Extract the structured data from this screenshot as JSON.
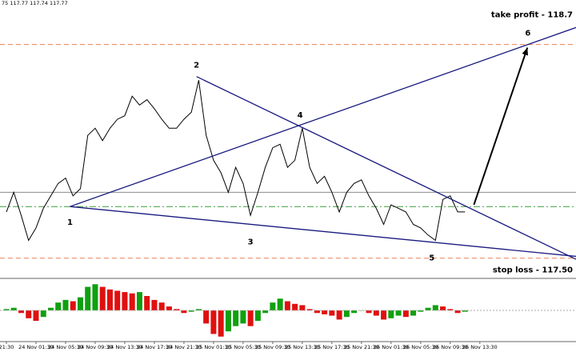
{
  "chart_data": {
    "type": "line",
    "header": "75 117.77 117.74 117.77",
    "categories": [
      "21:30",
      null,
      null,
      null,
      "24 Nov 01:30",
      null,
      null,
      null,
      "24 Nov 05:30",
      null,
      null,
      null,
      "24 Nov 09:30",
      null,
      null,
      null,
      "24 Nov 13:30",
      null,
      null,
      null,
      "24 Nov 17:30",
      null,
      null,
      null,
      "24 Nov 21:30",
      null,
      null,
      null,
      "25 Nov 01:30",
      null,
      null,
      null,
      "25 Nov 05:30",
      null,
      null,
      null,
      "25 Nov 09:30",
      null,
      null,
      null,
      "25 Nov 13:30",
      null,
      null,
      null,
      "25 Nov 17:30",
      null,
      null,
      null,
      "25 Nov 21:30",
      null,
      null,
      null,
      "26 Nov 01:30",
      null,
      null,
      null,
      "26 Nov 05:30",
      null,
      null,
      null,
      "26 Nov 09:30",
      null,
      null,
      null,
      "26 Nov 13:30"
    ],
    "series": [
      {
        "color": "#000000",
        "values": [
          117.76,
          117.87,
          117.74,
          117.6,
          117.67,
          117.78,
          117.85,
          117.92,
          117.95,
          117.85,
          117.89,
          118.19,
          118.23,
          118.16,
          118.23,
          118.28,
          118.3,
          118.41,
          118.36,
          118.39,
          118.34,
          118.28,
          118.23,
          118.23,
          118.28,
          118.32,
          118.5,
          118.19,
          118.05,
          117.98,
          117.87,
          118.01,
          117.92,
          117.74,
          117.87,
          118.01,
          118.12,
          118.14,
          118.01,
          118.05,
          118.23,
          118.01,
          117.92,
          117.96,
          117.87,
          117.76,
          117.87,
          117.92,
          117.94,
          117.85,
          117.78,
          117.69,
          117.8,
          117.78,
          117.76,
          117.69,
          117.67,
          117.63,
          117.6,
          117.83,
          117.85,
          117.76,
          117.76,
          null,
          null
        ]
      }
    ],
    "xlim": [
      0,
      77
    ],
    "ylim": [
      117.4,
      118.95
    ],
    "levels": [
      {
        "label": "take profit - 118.7",
        "value": 118.7,
        "color": "#f08050",
        "style": "dashed"
      },
      {
        "label": "stop loss - 117.50",
        "value": 117.5,
        "color": "#f08050",
        "style": "dashed"
      },
      {
        "value": 117.87,
        "color": "#8c8c8c",
        "style": "solid"
      },
      {
        "value": 117.79,
        "color": "#3a9a3a",
        "style": "dashdot"
      }
    ],
    "points": [
      {
        "label": "1",
        "x": 8.6,
        "y": 117.79
      },
      {
        "label": "2",
        "x": 25.7,
        "y": 118.52
      },
      {
        "label": "3",
        "x": 33,
        "y": 117.68
      },
      {
        "label": "4",
        "x": 39.7,
        "y": 118.24
      },
      {
        "label": "5",
        "x": 57.5,
        "y": 117.59
      },
      {
        "label": "6",
        "x": 70.5,
        "y": 118.7
      }
    ],
    "trendline_color": "#1a1a80",
    "arrow": {
      "x": 63.2,
      "y": 117.8
    },
    "oscillator": {
      "values": [
        0.05,
        0.1,
        -0.1,
        -0.3,
        -0.4,
        -0.25,
        0.1,
        0.3,
        0.4,
        0.35,
        0.5,
        0.9,
        1.0,
        0.9,
        0.8,
        0.75,
        0.7,
        0.65,
        0.7,
        0.55,
        0.4,
        0.3,
        0.15,
        0.05,
        -0.1,
        -0.05,
        0.05,
        -0.5,
        -0.9,
        -1.0,
        -0.8,
        -0.6,
        -0.5,
        -0.6,
        -0.4,
        -0.1,
        0.3,
        0.45,
        0.35,
        0.25,
        0.2,
        0.05,
        -0.1,
        -0.15,
        -0.2,
        -0.35,
        -0.25,
        -0.1,
        0.0,
        -0.1,
        -0.2,
        -0.35,
        -0.3,
        -0.2,
        -0.25,
        -0.2,
        -0.05,
        0.1,
        0.2,
        0.15,
        0.05,
        -0.1,
        -0.05,
        null,
        null
      ],
      "ylim": [
        -1.1,
        1.1
      ],
      "up_color": "#10a010",
      "down_color": "#e01010"
    }
  }
}
